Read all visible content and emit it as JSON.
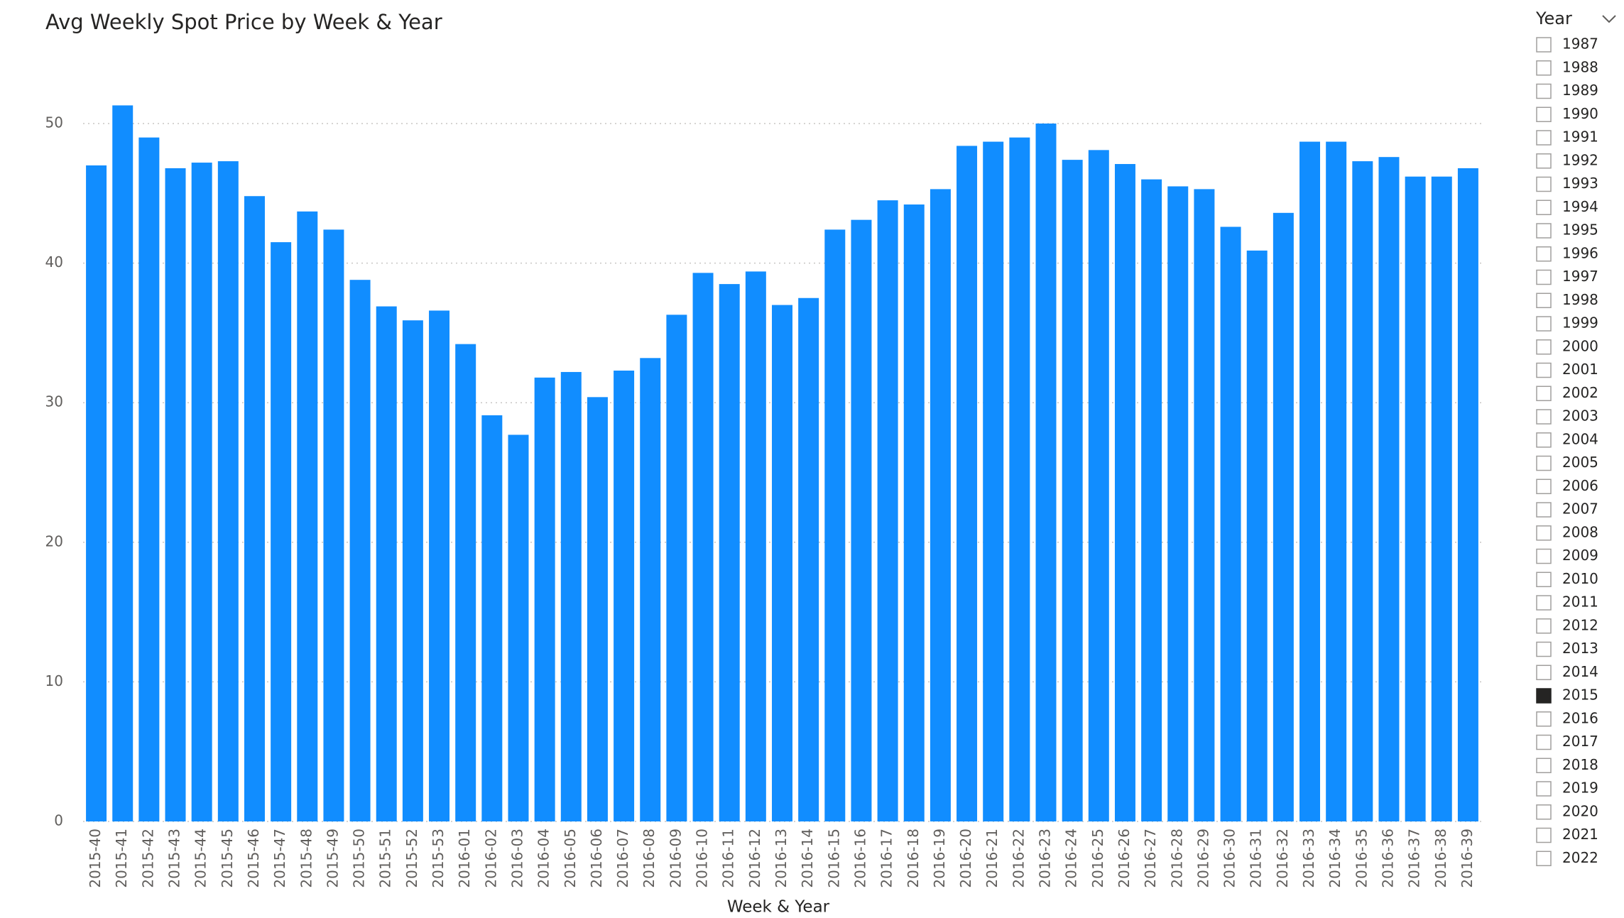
{
  "chart_data": {
    "type": "bar",
    "title": "Avg Weekly Spot Price by Week & Year",
    "x_label": "Week & Year",
    "categories": [
      "2015-40",
      "2015-41",
      "2015-42",
      "2015-43",
      "2015-44",
      "2015-45",
      "2015-46",
      "2015-47",
      "2015-48",
      "2015-49",
      "2015-50",
      "2015-51",
      "2015-52",
      "2015-53",
      "2016-01",
      "2016-02",
      "2016-03",
      "2016-04",
      "2016-05",
      "2016-06",
      "2016-07",
      "2016-08",
      "2016-09",
      "2016-10",
      "2016-11",
      "2016-12",
      "2016-13",
      "2016-14",
      "2016-15",
      "2016-16",
      "2016-17",
      "2016-18",
      "2016-19",
      "2016-20",
      "2016-21",
      "2016-22",
      "2016-23",
      "2016-24",
      "2016-25",
      "2016-26",
      "2016-27",
      "2016-28",
      "2016-29",
      "2016-30",
      "2016-31",
      "2016-32",
      "2016-33",
      "2016-34",
      "2016-35",
      "2016-36",
      "2016-37",
      "2016-38",
      "2016-39"
    ],
    "values": [
      47.0,
      51.3,
      49.0,
      46.8,
      47.2,
      47.3,
      44.8,
      41.5,
      43.7,
      42.4,
      38.8,
      36.9,
      35.9,
      36.6,
      34.2,
      29.1,
      27.7,
      31.8,
      32.2,
      30.4,
      32.3,
      33.2,
      36.3,
      39.3,
      38.5,
      39.4,
      37.0,
      37.5,
      42.4,
      43.1,
      44.5,
      44.2,
      45.3,
      48.4,
      48.7,
      49.0,
      50.0,
      47.4,
      48.1,
      47.1,
      46.0,
      45.5,
      45.3,
      42.6,
      40.9,
      43.6,
      48.7,
      48.7,
      47.3,
      47.6,
      46.2,
      46.2,
      46.8
    ],
    "color": "#118dff",
    "ylim": [
      0,
      52
    ],
    "yticks": [
      0,
      10,
      20,
      30,
      40,
      50
    ],
    "grid": true
  },
  "slicer": {
    "title": "Year",
    "items": [
      "1987",
      "1988",
      "1989",
      "1990",
      "1991",
      "1992",
      "1993",
      "1994",
      "1995",
      "1996",
      "1997",
      "1998",
      "1999",
      "2000",
      "2001",
      "2002",
      "2003",
      "2004",
      "2005",
      "2006",
      "2007",
      "2008",
      "2009",
      "2010",
      "2011",
      "2012",
      "2013",
      "2014",
      "2015",
      "2016",
      "2017",
      "2018",
      "2019",
      "2020",
      "2021",
      "2022"
    ],
    "selected": "2015"
  }
}
